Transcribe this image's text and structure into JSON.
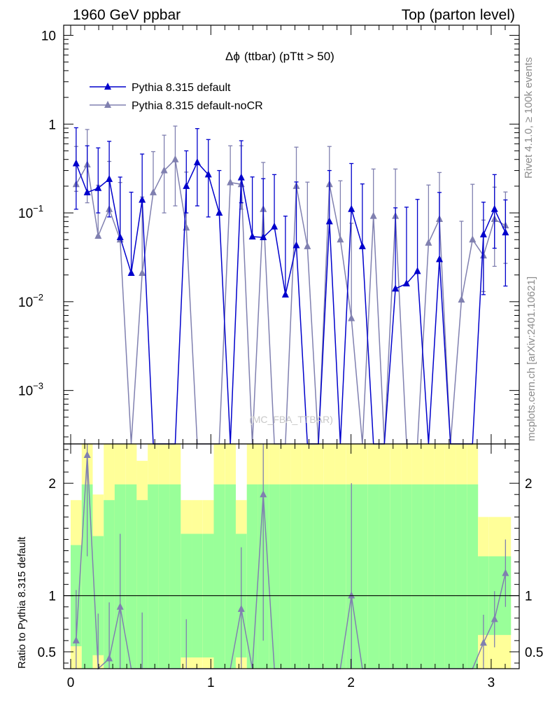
{
  "header": {
    "left": "1960 GeV ppbar",
    "right": "Top (parton level)"
  },
  "side_labels": {
    "rivet": "Rivet 4.1.0, ≥ 100k events",
    "mcplots": "mcplots.cern.ch [arXiv:2401.10621]"
  },
  "watermark": "(MC_FBA_TTBAR)",
  "colors": {
    "series1": "#0000cc",
    "series2": "#8080b0",
    "band_green": "#99ff99",
    "band_yellow": "#ffff99"
  },
  "chart_data": [
    {
      "type": "line",
      "panel": "main",
      "title_symbol": "Δϕ",
      "title": "(ttbar) (pTtt > 50)",
      "yscale": "log",
      "xlim": [
        -0.05,
        3.2
      ],
      "ylim": [
        0.00025,
        13
      ],
      "yticks": [
        {
          "v": 10,
          "label": "10"
        },
        {
          "v": 1,
          "label": "1"
        },
        {
          "v": 0.1,
          "label": "10",
          "sup": "−1"
        },
        {
          "v": 0.01,
          "label": "10",
          "sup": "−2"
        },
        {
          "v": 0.001,
          "label": "10",
          "sup": "−3"
        }
      ],
      "legend": [
        "Pythia 8.315 default",
        "Pythia 8.315 default-noCR"
      ],
      "x": [
        0.039,
        0.118,
        0.196,
        0.275,
        0.353,
        0.432,
        0.51,
        0.589,
        0.667,
        0.746,
        0.825,
        0.903,
        0.982,
        1.06,
        1.139,
        1.217,
        1.296,
        1.374,
        1.453,
        1.532,
        1.61,
        1.689,
        1.767,
        1.846,
        1.924,
        2.003,
        2.081,
        2.16,
        2.238,
        2.317,
        2.396,
        2.474,
        2.553,
        2.631,
        2.71,
        2.788,
        2.867,
        2.945,
        3.024,
        3.102
      ],
      "series": [
        {
          "name": "Pythia 8.315 default",
          "values": [
            0.36,
            0.17,
            0.19,
            0.24,
            0.053,
            0.021,
            0.14,
            0,
            0,
            0,
            0.2,
            0.37,
            0.27,
            0.1,
            0,
            0.25,
            0.054,
            0.053,
            0.07,
            0.012,
            0.043,
            0,
            0,
            0.08,
            0,
            0.11,
            0.042,
            0,
            0,
            0.014,
            0.016,
            0.022,
            0,
            0.03,
            0,
            0,
            0,
            0.057,
            0.11,
            0.06
          ],
          "err_up": [
            0.55,
            0.4,
            0.35,
            0.4,
            0.2,
            0.15,
            0.32,
            0,
            0,
            0,
            0.3,
            0.52,
            0.4,
            0.2,
            0,
            0.4,
            0.2,
            0.19,
            0.2,
            0.08,
            0.18,
            0,
            0,
            0.22,
            0,
            0.25,
            0.17,
            0,
            0,
            0.1,
            0.1,
            0.12,
            0,
            0.14,
            0,
            0,
            0,
            0.075,
            0.16,
            0.08
          ],
          "err_down": [
            0.25,
            1e-05,
            0.09,
            0.15,
            1e-05,
            1e-05,
            1e-05,
            0,
            0,
            0,
            0.1,
            0.25,
            0.18,
            1e-05,
            0,
            0.12,
            1e-05,
            1e-05,
            1e-05,
            1e-05,
            1e-05,
            0,
            0,
            1e-05,
            0,
            1e-05,
            1e-05,
            0,
            0,
            1e-05,
            1e-05,
            1e-05,
            0,
            1e-05,
            0,
            0,
            0,
            0.045,
            0.07,
            0.045
          ]
        },
        {
          "name": "Pythia 8.315 default-noCR",
          "values": [
            0.21,
            0.35,
            0.055,
            0.11,
            0.05,
            0,
            0.021,
            0.17,
            0.3,
            0.4,
            0.068,
            0,
            0,
            0,
            0.22,
            0.21,
            0,
            0.11,
            0,
            0,
            0.2,
            0.042,
            0,
            0.21,
            0.05,
            0.0065,
            0,
            0.092,
            0,
            0.092,
            0,
            0,
            0.046,
            0.085,
            0,
            0.0105,
            0.05,
            0.033,
            0.085,
            0.072
          ],
          "err_up": [
            0.35,
            0.52,
            0.15,
            0.27,
            0.17,
            0,
            0.13,
            0.32,
            0.45,
            0.55,
            0.22,
            0,
            0,
            0,
            0.35,
            0.36,
            0,
            0.26,
            0,
            0,
            0.35,
            0.18,
            0,
            0.35,
            0.18,
            0.07,
            0,
            0.22,
            0,
            0.22,
            0,
            0,
            0.16,
            0.2,
            0,
            0.07,
            0.16,
            0.05,
            0.11,
            0.1
          ],
          "err_down": [
            0.035,
            0.22,
            1e-05,
            1e-05,
            1e-05,
            0,
            1e-05,
            1e-05,
            0.2,
            0.28,
            1e-05,
            0,
            0,
            0,
            1e-05,
            0.1,
            0,
            1e-05,
            0,
            0,
            1e-05,
            1e-05,
            0,
            1e-05,
            1e-05,
            1e-05,
            0,
            1e-05,
            0,
            1e-05,
            0,
            0,
            1e-05,
            1e-05,
            0,
            1e-05,
            1e-05,
            0.02,
            0.06,
            0.045
          ]
        }
      ]
    },
    {
      "type": "line",
      "panel": "ratio",
      "ylabel": "Ratio to Pythia 8.315 default",
      "xlim": [
        -0.05,
        3.2
      ],
      "ylim": [
        0.35,
        2.35
      ],
      "yticks": [
        0.5,
        1,
        2
      ],
      "xticks": [
        0,
        1,
        2,
        3
      ],
      "reference": 1,
      "band_green_half": [
        0.45,
        0.99,
        0.53,
        0.85,
        0.99,
        0.99,
        0.85,
        0.99,
        0.99,
        0.99,
        0.55,
        0.55,
        0.55,
        0.99,
        0.99,
        0.55,
        0.99,
        0.99,
        0.99,
        0.99,
        0.99,
        0.99,
        0.99,
        0.99,
        0.99,
        0.99,
        0.99,
        0.99,
        0.99,
        0.99,
        0.99,
        0.99,
        0.99,
        0.99,
        0.99,
        0.99,
        0.99,
        0.35,
        0.35,
        0.35
      ],
      "band_yellow_half": [
        0.85,
        1.4,
        0.9,
        1.4,
        1.4,
        1.4,
        1.2,
        1.4,
        1.4,
        1.4,
        0.85,
        0.85,
        0.85,
        1.4,
        1.4,
        0.85,
        1.4,
        1.4,
        1.4,
        1.4,
        1.4,
        1.4,
        1.4,
        1.4,
        1.4,
        1.4,
        1.4,
        1.4,
        1.4,
        1.4,
        1.4,
        1.4,
        1.4,
        1.4,
        1.4,
        1.4,
        1.4,
        0.7,
        0.7,
        0.7
      ],
      "ratio": [
        0.6,
        2.25,
        0.29,
        0.44,
        0.9,
        0,
        0.15,
        0,
        0,
        0,
        0.34,
        0,
        0,
        0,
        0,
        0.88,
        0,
        1.9,
        0,
        0,
        0,
        0,
        0,
        0,
        0,
        1.0,
        0,
        0,
        0,
        0,
        0,
        0,
        0,
        0,
        0,
        0,
        0,
        0.58,
        0.79,
        1.2
      ],
      "ratio_err": [
        0.45,
        0.9,
        0.55,
        0.5,
        0.65,
        0,
        0.7,
        0,
        0,
        0,
        0.45,
        0,
        0,
        0,
        0,
        0.55,
        0,
        1.3,
        0,
        0,
        0,
        0,
        0,
        0,
        0,
        1.0,
        0,
        0,
        0,
        0,
        0,
        0,
        0,
        0,
        0,
        0,
        0,
        0.25,
        0.25,
        0.3
      ]
    }
  ]
}
